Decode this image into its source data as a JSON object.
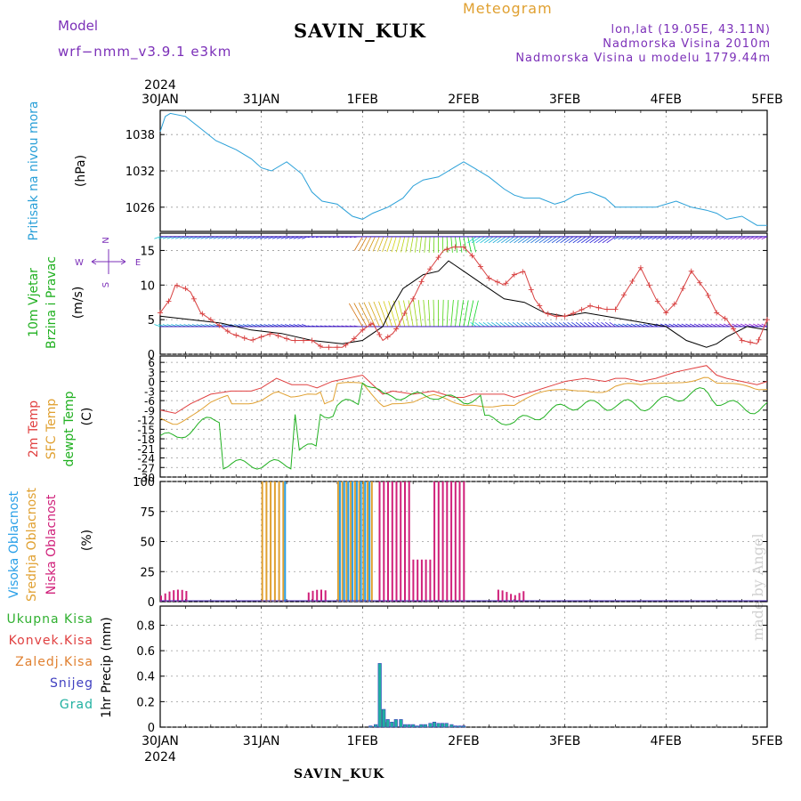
{
  "header": {
    "model_label": "Model",
    "model_name": "wrf−nmm_v3.9.1 e3km",
    "title": "SAVIN_KUK",
    "subtitle": "Meteogram",
    "location_lines": [
      "lon,lat (19.05E, 43.11N)",
      "Nadmorska Visina 2010m",
      "Nadmorska Visina u modelu 1779.44m"
    ]
  },
  "footer": {
    "station": "SAVIN_KUK"
  },
  "credit": "made by Angel",
  "colors": {
    "pressure": "#2aa0d8",
    "wind_obs": "#d84040",
    "wind_model": "#000000",
    "temp_2m": "#e04040",
    "temp_sfc": "#e0a030",
    "dewpt": "#20b020",
    "cloud_high": "#2aa0e8",
    "cloud_mid": "#e0a030",
    "cloud_low": "#d0207a",
    "precip_total": "#30b030",
    "precip_conv": "#e04040",
    "precip_frozen": "#e08030",
    "snow": "#4040c0",
    "hail": "#20b0a0",
    "label_purple": "#7b2fb8"
  },
  "chart_data": [
    {
      "type": "line",
      "panel": "pressure",
      "title": "",
      "xlabel": "",
      "ylabel_lines": [
        "Pritisak na nivou mora",
        "(hPa)"
      ],
      "year_top": "2024",
      "x_tick_labels": [
        "30JAN",
        "31JAN",
        "1FEB",
        "2FEB",
        "3FEB",
        "4FEB",
        "5FEB"
      ],
      "x_range_days": [
        0,
        6
      ],
      "yticks": [
        1026,
        1032,
        1038
      ],
      "ylim": [
        1022,
        1042
      ],
      "grid": true,
      "series": [
        {
          "name": "",
          "x": [
            0.0,
            0.05,
            0.1,
            0.25,
            0.4,
            0.55,
            0.75,
            0.9,
            1.0,
            1.1,
            1.25,
            1.4,
            1.5,
            1.6,
            1.75,
            1.9,
            2.0,
            2.1,
            2.25,
            2.4,
            2.5,
            2.6,
            2.75,
            2.9,
            3.0,
            3.1,
            3.25,
            3.4,
            3.5,
            3.6,
            3.75,
            3.9,
            4.0,
            4.1,
            4.25,
            4.4,
            4.5,
            4.6,
            4.75,
            4.9,
            5.0,
            5.1,
            5.25,
            5.4,
            5.5,
            5.6,
            5.75,
            5.9,
            6.0
          ],
          "y": [
            1038.5,
            1041,
            1041.5,
            1041,
            1039,
            1037,
            1035.5,
            1034,
            1032.5,
            1032,
            1033.5,
            1031.5,
            1028.5,
            1027,
            1026.5,
            1024.5,
            1024,
            1025,
            1026,
            1027.5,
            1029.5,
            1030.5,
            1031,
            1032.5,
            1033.5,
            1032.5,
            1031,
            1029,
            1028,
            1027.5,
            1027.5,
            1026.5,
            1027,
            1028,
            1028.5,
            1027.5,
            1026,
            1026,
            1026,
            1026,
            1026.5,
            1027,
            1026,
            1025.5,
            1025,
            1024,
            1024.5,
            1023,
            1023
          ]
        }
      ]
    },
    {
      "type": "line",
      "panel": "wind",
      "title": "",
      "ylabel_lines": [
        "10m Vjetar",
        "Brzina i Pravac",
        "(m/s)"
      ],
      "compass": {
        "n": "N",
        "s": "S",
        "e": "E",
        "w": "W"
      },
      "yticks": [
        0,
        5,
        10,
        15
      ],
      "ylim": [
        0,
        17.5
      ],
      "grid": true,
      "barbs_upper_level": 17,
      "barbs_lower_level": 4,
      "series": [
        {
          "name": "",
          "x": [
            0.0,
            0.1,
            0.15,
            0.25,
            0.3,
            0.4,
            0.55,
            0.7,
            0.9,
            1.1,
            1.3,
            1.5,
            1.6,
            1.7,
            1.8,
            1.9,
            2.0,
            2.1,
            2.2,
            2.25,
            2.3,
            2.35,
            2.4,
            2.5,
            2.6,
            2.7,
            2.75,
            2.8,
            2.9,
            3.0,
            3.1,
            3.25,
            3.4,
            3.5,
            3.6,
            3.7,
            3.8,
            3.9,
            4.0,
            4.1,
            4.25,
            4.4,
            4.5,
            4.6,
            4.75,
            4.9,
            5.0,
            5.1,
            5.25,
            5.4,
            5.5,
            5.6,
            5.75,
            5.9,
            6.0
          ],
          "y": [
            6,
            8,
            10,
            9.5,
            9,
            6,
            4.5,
            3,
            2,
            3,
            2,
            2,
            1,
            1,
            1,
            2,
            3.5,
            4.5,
            2,
            2.5,
            3,
            4,
            5.5,
            8,
            11,
            13,
            14,
            15,
            15.5,
            15.5,
            14,
            11,
            10,
            11.5,
            12,
            8,
            6,
            5.5,
            5.5,
            6,
            7,
            6.5,
            6.5,
            9,
            12.5,
            8,
            6,
            7.5,
            12,
            9,
            6,
            5,
            2,
            1.5,
            5
          ]
        },
        {
          "name": "",
          "x": [
            0.0,
            0.3,
            0.6,
            0.9,
            1.2,
            1.5,
            1.8,
            2.0,
            2.1,
            2.2,
            2.3,
            2.4,
            2.5,
            2.6,
            2.75,
            2.85,
            3.0,
            3.2,
            3.4,
            3.6,
            3.8,
            4.0,
            4.2,
            4.4,
            4.6,
            4.8,
            5.0,
            5.2,
            5.4,
            5.5,
            5.6,
            5.8,
            6.0
          ],
          "y": [
            5.5,
            5,
            4.5,
            3.5,
            3,
            2,
            1.5,
            2,
            3,
            4,
            7,
            9.5,
            10.5,
            11.5,
            12,
            13.5,
            12,
            10,
            8,
            7.5,
            6,
            5.5,
            6,
            5.5,
            5,
            4.5,
            4,
            2,
            1,
            1.5,
            2.5,
            4,
            3.5
          ]
        }
      ]
    },
    {
      "type": "line",
      "panel": "temperature",
      "title": "",
      "ylabel_lines": [
        "2m Temp",
        "SFC Temp",
        "dewpt Temp",
        "(C)"
      ],
      "yticks": [
        6,
        3,
        0,
        -3,
        -6,
        -9,
        -12,
        -15,
        -18,
        -21,
        -24,
        -27,
        -30
      ],
      "ylim": [
        -30,
        8
      ],
      "grid": true,
      "series": [
        {
          "name": "",
          "x": [
            0.0,
            0.15,
            0.3,
            0.5,
            0.7,
            0.9,
            1.0,
            1.15,
            1.3,
            1.45,
            1.55,
            1.7,
            1.85,
            2.0,
            2.1,
            2.2,
            2.3,
            2.5,
            2.7,
            2.9,
            3.0,
            3.1,
            3.25,
            3.4,
            3.5,
            3.7,
            3.9,
            4.0,
            4.2,
            4.4,
            4.5,
            4.6,
            4.75,
            4.9,
            5.0,
            5.1,
            5.25,
            5.4,
            5.5,
            5.6,
            5.75,
            5.9,
            6.0
          ],
          "y": [
            -9,
            -10,
            -7,
            -4,
            -3,
            -3,
            -2,
            1,
            -1,
            -1,
            -2,
            0,
            1,
            2,
            -1,
            -4,
            -3,
            -4,
            -3,
            -5,
            -5,
            -4,
            -4,
            -4,
            -5,
            -3,
            -1,
            0,
            1,
            0,
            1,
            1,
            0,
            1,
            2,
            3,
            4,
            5,
            2,
            1,
            0,
            -1,
            0
          ]
        }
      ]
    },
    {
      "type": "bar",
      "panel": "clouds",
      "title": "",
      "ylabel_lines": [
        "Visoka Oblacnost",
        "Srednja Oblacnost",
        "Niska Oblacnost",
        "(%)"
      ],
      "yticks": [
        0,
        25,
        50,
        75,
        100
      ],
      "ylim": [
        0,
        100
      ],
      "grid": true
    },
    {
      "type": "bar",
      "panel": "precip",
      "title": "",
      "ylabel_lines": [
        "1hr Precip (mm)"
      ],
      "legend": [
        "Ukupna Kisa",
        "Konvek.Kisa",
        "Zaledj.Kisa",
        "Snijeg",
        "Grad"
      ],
      "yticks": [
        0,
        0.2,
        0.4,
        0.6,
        0.8
      ],
      "ylim": [
        0,
        0.95
      ],
      "grid": true,
      "year_bottom": "2024",
      "x_tick_labels": [
        "30JAN",
        "31JAN",
        "1FEB",
        "2FEB",
        "3FEB",
        "4FEB",
        "5FEB"
      ],
      "series": [
        {
          "name": "Ukupna Kisa",
          "x": [
            2.08,
            2.13,
            2.17,
            2.21,
            2.25,
            2.29,
            2.33,
            2.38,
            2.42,
            2.46,
            2.5,
            2.54,
            2.58,
            2.62,
            2.67,
            2.71,
            2.75,
            2.79,
            2.83,
            2.88,
            2.92,
            2.96,
            3.0
          ],
          "values": [
            0.01,
            0.02,
            0.5,
            0.14,
            0.06,
            0.04,
            0.06,
            0.06,
            0.02,
            0.02,
            0.02,
            0.01,
            0.02,
            0.02,
            0.03,
            0.04,
            0.03,
            0.03,
            0.03,
            0.02,
            0.01,
            0.01,
            0.01
          ]
        }
      ]
    }
  ]
}
